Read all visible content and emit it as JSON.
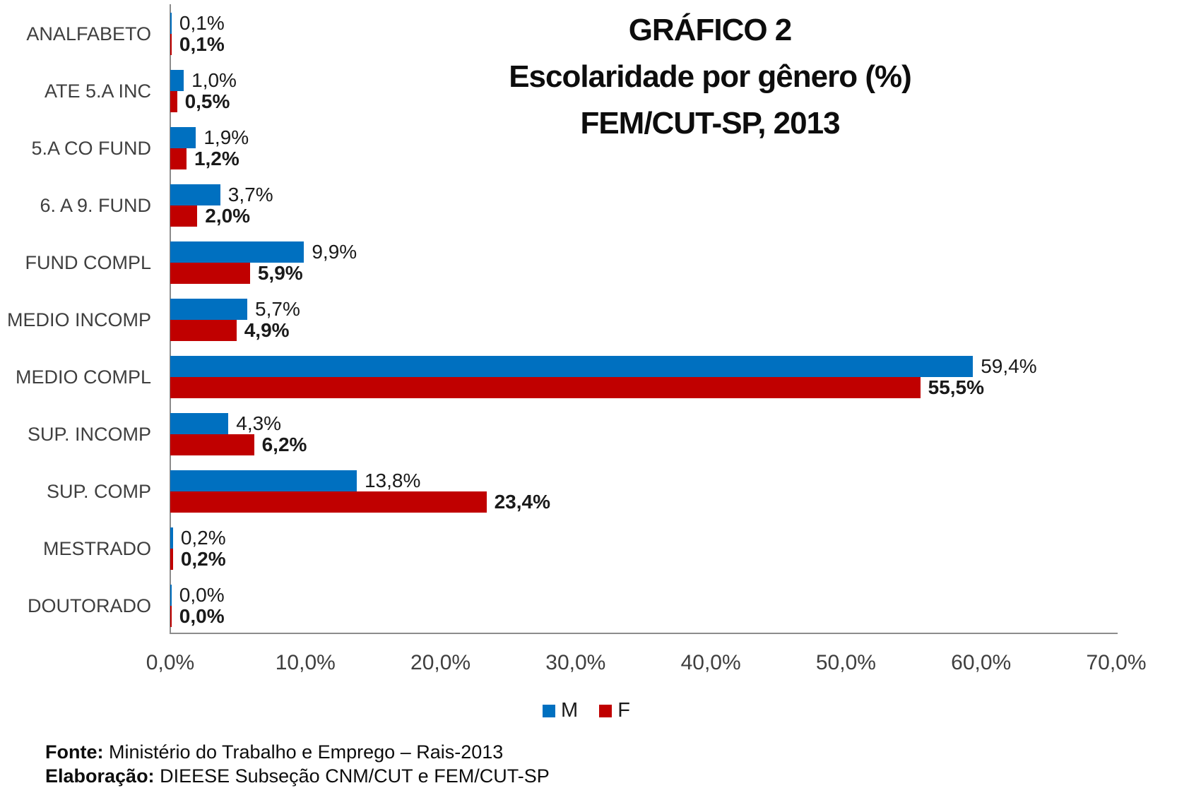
{
  "title": {
    "line1": "GRÁFICO 2",
    "line2": "Escolaridade por gênero (%)",
    "line3": "FEM/CUT-SP, 2013"
  },
  "chart_data": {
    "type": "bar",
    "orientation": "horizontal",
    "title": "GRÁFICO 2 Escolaridade por gênero (%) FEM/CUT-SP, 2013",
    "categories": [
      "ANALFABETO",
      "ATE 5.A INC",
      "5.A CO FUND",
      "6. A 9. FUND",
      "FUND COMPL",
      "MEDIO INCOMP",
      "MEDIO COMPL",
      "SUP. INCOMP",
      "SUP. COMP",
      "MESTRADO",
      "DOUTORADO"
    ],
    "series": [
      {
        "name": "M",
        "color": "#0070C0",
        "values": [
          0.1,
          1.0,
          1.9,
          3.7,
          9.9,
          5.7,
          59.4,
          4.3,
          13.8,
          0.2,
          0.0
        ],
        "labels": [
          "0,1%",
          "1,0%",
          "1,9%",
          "3,7%",
          "9,9%",
          "5,7%",
          "59,4%",
          "4,3%",
          "13,8%",
          "0,2%",
          "0,0%"
        ]
      },
      {
        "name": "F",
        "color": "#C00000",
        "values": [
          0.1,
          0.5,
          1.2,
          2.0,
          5.9,
          4.9,
          55.5,
          6.2,
          23.4,
          0.2,
          0.0
        ],
        "labels": [
          "0,1%",
          "0,5%",
          "1,2%",
          "2,0%",
          "5,9%",
          "4,9%",
          "55,5%",
          "6,2%",
          "23,4%",
          "0,2%",
          "0,0%"
        ]
      }
    ],
    "xlabel": "",
    "ylabel": "",
    "xlim": [
      0,
      70
    ],
    "x_ticks": [
      "0,0%",
      "10,0%",
      "20,0%",
      "30,0%",
      "40,0%",
      "50,0%",
      "60,0%",
      "70,0%"
    ],
    "grid": false,
    "legend_position": "bottom"
  },
  "footer": {
    "fonte_label": "Fonte:",
    "fonte_text": " Ministério do Trabalho e Emprego – Rais-2013",
    "elaboracao_label": "Elaboração:",
    "elaboracao_text": " DIEESE Subseção CNM/CUT e FEM/CUT-SP"
  }
}
